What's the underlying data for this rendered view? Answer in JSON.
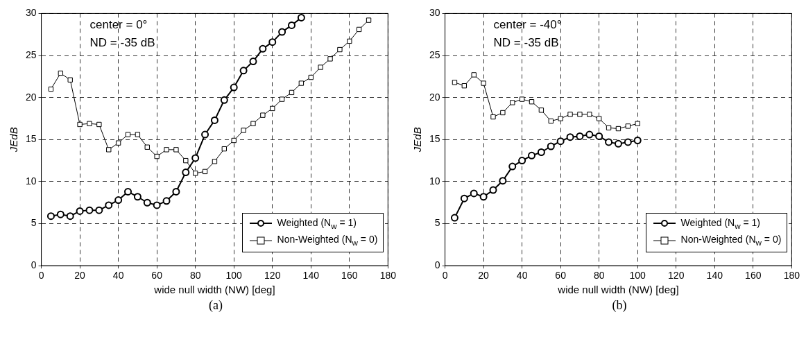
{
  "chart_data": [
    {
      "type": "line",
      "xlabel": "wide null width (NW) [deg]",
      "ylabel": "JEdB",
      "xlim": [
        0,
        180
      ],
      "xticks": [
        0,
        20,
        40,
        60,
        80,
        100,
        120,
        140,
        160,
        180
      ],
      "ylim": [
        0,
        30
      ],
      "yticks": [
        0,
        5,
        10,
        15,
        20,
        25,
        30
      ],
      "grid": true,
      "legend": "bottom right",
      "line_style": "solid",
      "annotations": [
        "center = 0°",
        "ND = -35 dB",
        "(a)"
      ],
      "series": [
        {
          "name": "Weighted (N$_{w}$ = 1)",
          "color": "#000000",
          "marker": "circle",
          "x": [
            5,
            10,
            15,
            20,
            25,
            30,
            35,
            40,
            45,
            50,
            55,
            60,
            65,
            70,
            75,
            80,
            85,
            90,
            95,
            100,
            105,
            110,
            115,
            120,
            125,
            130,
            135
          ],
          "values": [
            5.9,
            6.1,
            5.9,
            6.5,
            6.6,
            6.6,
            7.2,
            7.8,
            8.8,
            8.2,
            7.5,
            7.2,
            7.7,
            8.8,
            11.1,
            12.8,
            15.6,
            17.3,
            19.7,
            21.2,
            23.2,
            24.3,
            25.8,
            26.6,
            27.8,
            28.6,
            29.5
          ]
        },
        {
          "name": "Non-Weighted (N$_{w}$ = 0)",
          "color": "#000000",
          "marker": "square",
          "x": [
            5,
            10,
            15,
            20,
            25,
            30,
            35,
            40,
            45,
            50,
            55,
            60,
            65,
            70,
            75,
            80,
            85,
            90,
            95,
            100,
            105,
            110,
            115,
            120,
            125,
            130,
            135,
            140,
            145,
            150,
            155,
            160,
            165,
            170
          ],
          "values": [
            21.0,
            22.9,
            22.1,
            16.8,
            16.9,
            16.8,
            13.8,
            14.6,
            15.6,
            15.6,
            14.1,
            13.0,
            13.8,
            13.8,
            12.5,
            11.0,
            11.2,
            12.4,
            13.9,
            14.9,
            16.1,
            16.9,
            17.9,
            18.7,
            19.8,
            20.6,
            21.7,
            22.4,
            23.6,
            24.6,
            25.7,
            26.7,
            28.1,
            29.2
          ]
        }
      ]
    },
    {
      "type": "line",
      "xlabel": "wide null width (NW) [deg]",
      "ylabel": "JEdB",
      "xlim": [
        0,
        180
      ],
      "xticks": [
        0,
        20,
        40,
        60,
        80,
        100,
        120,
        140,
        160,
        180
      ],
      "ylim": [
        0,
        30
      ],
      "yticks": [
        0,
        5,
        10,
        15,
        20,
        25,
        30
      ],
      "grid": true,
      "legend": "bottom right",
      "line_style": "solid",
      "annotations": [
        "center = -40°",
        "ND = -35 dB",
        "(b)"
      ],
      "series": [
        {
          "name": "Weighted (N$_{w}$ = 1)",
          "color": "#000000",
          "marker": "circle",
          "x": [
            5,
            10,
            15,
            20,
            25,
            30,
            35,
            40,
            45,
            50,
            55,
            60,
            65,
            70,
            75,
            80,
            85,
            90,
            95,
            100
          ],
          "values": [
            5.7,
            8.0,
            8.6,
            8.2,
            9.0,
            10.1,
            11.8,
            12.5,
            13.1,
            13.5,
            14.2,
            14.8,
            15.3,
            15.4,
            15.6,
            15.4,
            14.7,
            14.5,
            14.7,
            14.9
          ]
        },
        {
          "name": "Non-Weighted (N$_{w}$ = 0)",
          "color": "#000000",
          "marker": "square",
          "x": [
            5,
            10,
            15,
            20,
            25,
            30,
            35,
            40,
            45,
            50,
            55,
            60,
            65,
            70,
            75,
            80,
            85,
            90,
            95,
            100
          ],
          "values": [
            21.8,
            21.4,
            22.7,
            21.7,
            17.7,
            18.2,
            19.4,
            19.8,
            19.5,
            18.5,
            17.2,
            17.5,
            18.0,
            18.0,
            18.0,
            17.5,
            16.4,
            16.3,
            16.6,
            16.9
          ]
        }
      ]
    }
  ]
}
